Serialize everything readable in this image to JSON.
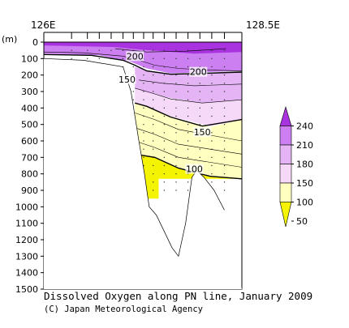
{
  "chart_data": {
    "type": "heatmap",
    "title": "Dissolved Oxygen along PN line, January 2009",
    "credit": "(C) Japan Meteorological Agency",
    "x_axis": {
      "start_label": "126E",
      "end_label": "128.5E",
      "xlim": [
        126.0,
        128.5
      ]
    },
    "y_axis": {
      "label": "(m)",
      "ylim": [
        0,
        1500
      ],
      "inverted": true,
      "ticks": [
        "0",
        "100",
        "200",
        "300",
        "400",
        "500",
        "600",
        "700",
        "800",
        "900",
        "1000",
        "1100",
        "1200",
        "1300",
        "1400",
        "1500"
      ]
    },
    "colorbar": {
      "levels": [
        "240",
        "210",
        "180",
        "150",
        "100",
        "50"
      ],
      "colors": {
        "240+": "#aa33e0",
        "210-240": "#cc7ff0",
        "180-210": "#e4b4f4",
        "150-180": "#f6d8f8",
        "100-150": "#ffffc0",
        "50-100": "#f4f400"
      }
    },
    "contour_labels": [
      {
        "value": "200",
        "lon": 127.15,
        "depth": 95
      },
      {
        "value": "150",
        "lon": 127.05,
        "depth": 235
      },
      {
        "value": "200",
        "lon": 127.95,
        "depth": 190
      },
      {
        "value": "150",
        "lon": 128.0,
        "depth": 555
      },
      {
        "value": "100",
        "lon": 127.9,
        "depth": 780
      }
    ],
    "stations_lon": [
      126.35,
      126.55,
      126.7,
      126.85,
      127.0,
      127.13,
      127.26,
      127.38,
      127.52,
      127.67,
      127.82,
      127.97,
      128.12,
      128.28
    ],
    "bottom_profile": [
      {
        "lon": 126.0,
        "depth": 100
      },
      {
        "lon": 126.5,
        "depth": 110
      },
      {
        "lon": 127.0,
        "depth": 150
      },
      {
        "lon": 127.1,
        "depth": 300
      },
      {
        "lon": 127.2,
        "depth": 600
      },
      {
        "lon": 127.27,
        "depth": 800
      },
      {
        "lon": 127.33,
        "depth": 1000
      },
      {
        "lon": 127.42,
        "depth": 1050
      },
      {
        "lon": 127.52,
        "depth": 1150
      },
      {
        "lon": 127.62,
        "depth": 1250
      },
      {
        "lon": 127.7,
        "depth": 1300
      },
      {
        "lon": 127.79,
        "depth": 1100
      },
      {
        "lon": 127.87,
        "depth": 820
      },
      {
        "lon": 127.93,
        "depth": 780
      },
      {
        "lon": 128.02,
        "depth": 820
      },
      {
        "lon": 128.15,
        "depth": 900
      },
      {
        "lon": 128.28,
        "depth": 1020
      }
    ]
  }
}
